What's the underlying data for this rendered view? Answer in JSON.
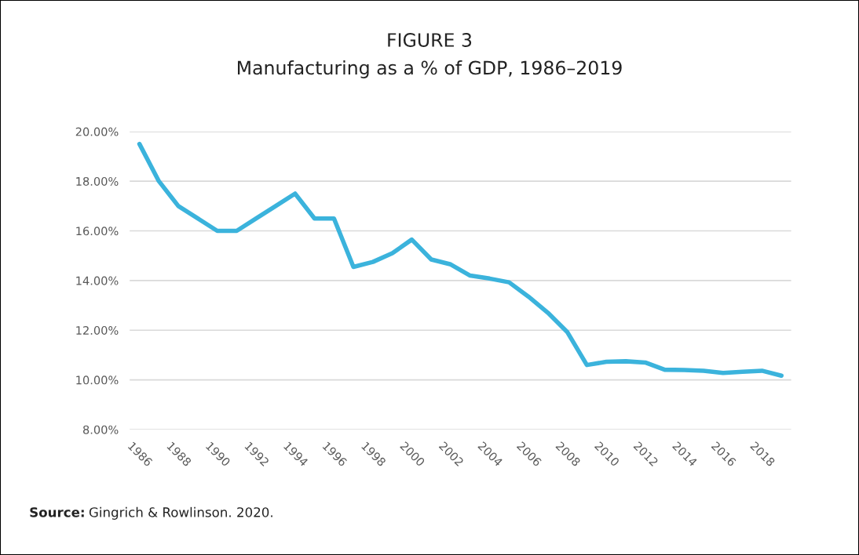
{
  "chart_data": {
    "type": "line",
    "title": "FIGURE 3",
    "subtitle": "Manufacturing as a % of GDP, 1986–2019",
    "annotations": [
      "Source: Gingrich & Rowlinson. 2020."
    ],
    "x": [
      1986,
      1987,
      1988,
      1989,
      1990,
      1991,
      1992,
      1993,
      1994,
      1995,
      1996,
      1997,
      1998,
      1999,
      2000,
      2001,
      2002,
      2003,
      2004,
      2005,
      2006,
      2007,
      2008,
      2009,
      2010,
      2011,
      2012,
      2013,
      2014,
      2015,
      2016,
      2017,
      2018,
      2019
    ],
    "series": [
      {
        "color": "#3bb3dc",
        "values": [
          19.5,
          18.0,
          17.0,
          16.5,
          16.0,
          16.0,
          16.5,
          17.0,
          17.5,
          16.5,
          16.5,
          14.55,
          14.75,
          15.1,
          15.65,
          14.85,
          14.65,
          14.2,
          14.08,
          13.93,
          13.35,
          12.7,
          11.92,
          10.6,
          10.73,
          10.75,
          10.7,
          10.41,
          10.4,
          10.37,
          10.28,
          10.33,
          10.37,
          10.17
        ]
      }
    ],
    "xlim": [
      1985.5,
      2019.5
    ],
    "xticks": [
      1986,
      1988,
      1990,
      1992,
      1994,
      1996,
      1998,
      2000,
      2002,
      2004,
      2006,
      2008,
      2010,
      2012,
      2014,
      2016,
      2018
    ],
    "ylim": [
      8,
      20
    ],
    "yticks": [
      {
        "value": 8,
        "label": "8.00%"
      },
      {
        "value": 10,
        "label": "10.00%"
      },
      {
        "value": 12,
        "label": "12.00%"
      },
      {
        "value": 14,
        "label": "14.00%"
      },
      {
        "value": 16,
        "label": "16.00%"
      },
      {
        "value": 18,
        "label": "18.00%"
      },
      {
        "value": 20,
        "label": "20.00%"
      }
    ],
    "grid": "y",
    "marker": "none",
    "line_style": "solid"
  }
}
